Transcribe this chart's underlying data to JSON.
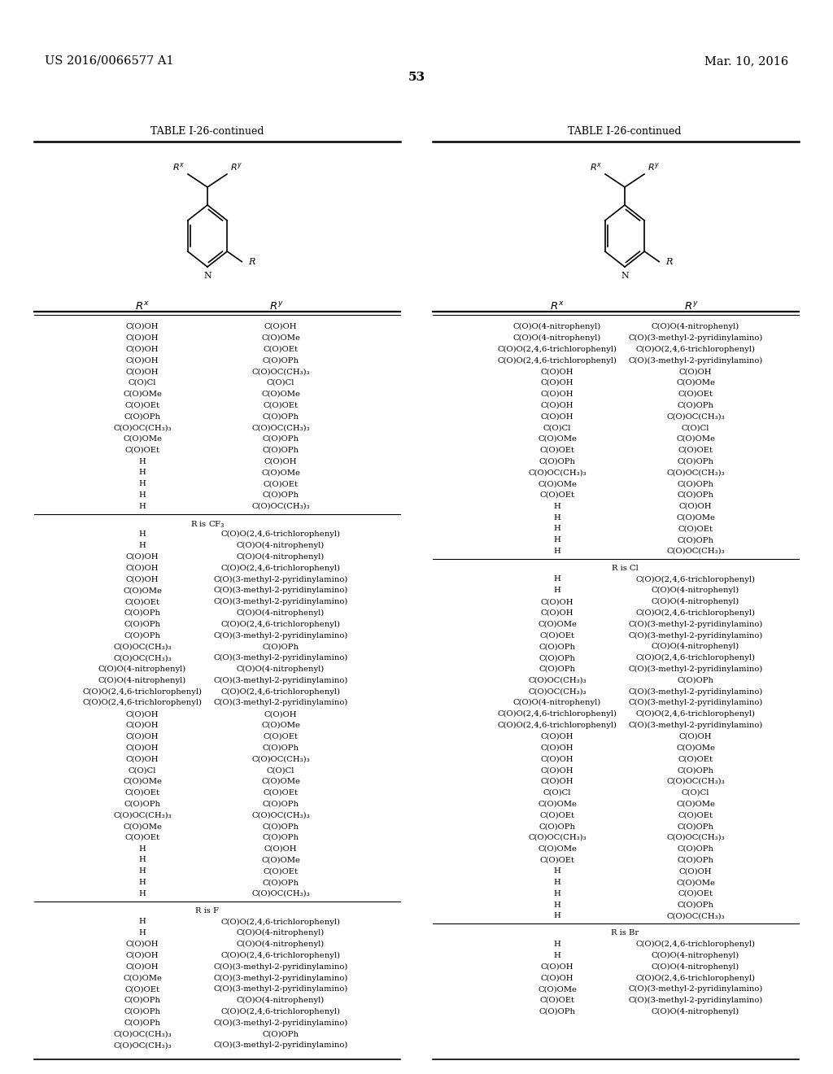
{
  "patent_left": "US 2016/0066577 A1",
  "patent_right": "Mar. 10, 2016",
  "page_number": "53",
  "table_title": "TABLE I-26-continued",
  "bg_color": "#ffffff",
  "text_color": "#000000",
  "left_initial_rows": [
    [
      "C(O)OH",
      "C(O)OH"
    ],
    [
      "C(O)OH",
      "C(O)OMe"
    ],
    [
      "C(O)OH",
      "C(O)OEt"
    ],
    [
      "C(O)OH",
      "C(O)OPh"
    ],
    [
      "C(O)OH",
      "C(O)OC(CH₃)₃"
    ],
    [
      "C(O)Cl",
      "C(O)Cl"
    ],
    [
      "C(O)OMe",
      "C(O)OMe"
    ],
    [
      "C(O)OEt",
      "C(O)OEt"
    ],
    [
      "C(O)OPh",
      "C(O)OPh"
    ],
    [
      "C(O)OC(CH₃)₃",
      "C(O)OC(CH₃)₃"
    ],
    [
      "C(O)OMe",
      "C(O)OPh"
    ],
    [
      "C(O)OEt",
      "C(O)OPh"
    ],
    [
      "H",
      "C(O)OH"
    ],
    [
      "H",
      "C(O)OMe"
    ],
    [
      "H",
      "C(O)OEt"
    ],
    [
      "H",
      "C(O)OPh"
    ],
    [
      "H",
      "C(O)OC(CH₃)₃"
    ]
  ],
  "left_cf3_rows": [
    [
      "H",
      "C(O)O(2,4,6-trichlorophenyl)"
    ],
    [
      "H",
      "C(O)O(4-nitrophenyl)"
    ],
    [
      "C(O)OH",
      "C(O)O(4-nitrophenyl)"
    ],
    [
      "C(O)OH",
      "C(O)O(2,4,6-trichlorophenyl)"
    ],
    [
      "C(O)OH",
      "C(O)(3-methyl-2-pyridinylamino)"
    ],
    [
      "C(O)OMe",
      "C(O)(3-methyl-2-pyridinylamino)"
    ],
    [
      "C(O)OEt",
      "C(O)(3-methyl-2-pyridinylamino)"
    ],
    [
      "C(O)OPh",
      "C(O)O(4-nitrophenyl)"
    ],
    [
      "C(O)OPh",
      "C(O)O(2,4,6-trichlorophenyl)"
    ],
    [
      "C(O)OPh",
      "C(O)(3-methyl-2-pyridinylamino)"
    ],
    [
      "C(O)OC(CH₃)₃",
      "C(O)OPh"
    ],
    [
      "C(O)OC(CH₃)₃",
      "C(O)(3-methyl-2-pyridinylamino)"
    ],
    [
      "C(O)O(4-nitrophenyl)",
      "C(O)O(4-nitrophenyl)"
    ],
    [
      "C(O)O(4-nitrophenyl)",
      "C(O)(3-methyl-2-pyridinylamino)"
    ],
    [
      "C(O)O(2,4,6-trichlorophenyl)",
      "C(O)O(2,4,6-trichlorophenyl)"
    ],
    [
      "C(O)O(2,4,6-trichlorophenyl)",
      "C(O)(3-methyl-2-pyridinylamino)"
    ],
    [
      "C(O)OH",
      "C(O)OH"
    ],
    [
      "C(O)OH",
      "C(O)OMe"
    ],
    [
      "C(O)OH",
      "C(O)OEt"
    ],
    [
      "C(O)OH",
      "C(O)OPh"
    ],
    [
      "C(O)OH",
      "C(O)OC(CH₃)₃"
    ],
    [
      "C(O)Cl",
      "C(O)Cl"
    ],
    [
      "C(O)OMe",
      "C(O)OMe"
    ],
    [
      "C(O)OEt",
      "C(O)OEt"
    ],
    [
      "C(O)OPh",
      "C(O)OPh"
    ],
    [
      "C(O)OC(CH₃)₃",
      "C(O)OC(CH₃)₃"
    ],
    [
      "C(O)OMe",
      "C(O)OPh"
    ],
    [
      "C(O)OEt",
      "C(O)OPh"
    ],
    [
      "H",
      "C(O)OH"
    ],
    [
      "H",
      "C(O)OMe"
    ],
    [
      "H",
      "C(O)OEt"
    ],
    [
      "H",
      "C(O)OPh"
    ],
    [
      "H",
      "C(O)OC(CH₃)₃"
    ]
  ],
  "left_f_rows": [
    [
      "H",
      "C(O)O(2,4,6-trichlorophenyl)"
    ],
    [
      "H",
      "C(O)O(4-nitrophenyl)"
    ],
    [
      "C(O)OH",
      "C(O)O(4-nitrophenyl)"
    ],
    [
      "C(O)OH",
      "C(O)O(2,4,6-trichlorophenyl)"
    ],
    [
      "C(O)OH",
      "C(O)(3-methyl-2-pyridinylamino)"
    ],
    [
      "C(O)OMe",
      "C(O)(3-methyl-2-pyridinylamino)"
    ],
    [
      "C(O)OEt",
      "C(O)(3-methyl-2-pyridinylamino)"
    ],
    [
      "C(O)OPh",
      "C(O)O(4-nitrophenyl)"
    ],
    [
      "C(O)OPh",
      "C(O)O(2,4,6-trichlorophenyl)"
    ],
    [
      "C(O)OPh",
      "C(O)(3-methyl-2-pyridinylamino)"
    ],
    [
      "C(O)OC(CH₃)₃",
      "C(O)OPh"
    ],
    [
      "C(O)OC(CH₃)₃",
      "C(O)(3-methyl-2-pyridinylamino)"
    ]
  ],
  "right_initial_rows": [
    [
      "C(O)O(4-nitrophenyl)",
      "C(O)O(4-nitrophenyl)"
    ],
    [
      "C(O)O(4-nitrophenyl)",
      "C(O)(3-methyl-2-pyridinylamino)"
    ],
    [
      "C(O)O(2,4,6-trichlorophenyl)",
      "C(O)O(2,4,6-trichlorophenyl)"
    ],
    [
      "C(O)O(2,4,6-trichlorophenyl)",
      "C(O)(3-methyl-2-pyridinylamino)"
    ],
    [
      "C(O)OH",
      "C(O)OH"
    ],
    [
      "C(O)OH",
      "C(O)OMe"
    ],
    [
      "C(O)OH",
      "C(O)OEt"
    ],
    [
      "C(O)OH",
      "C(O)OPh"
    ],
    [
      "C(O)OH",
      "C(O)OC(CH₃)₃"
    ],
    [
      "C(O)Cl",
      "C(O)Cl"
    ],
    [
      "C(O)OMe",
      "C(O)OMe"
    ],
    [
      "C(O)OEt",
      "C(O)OEt"
    ],
    [
      "C(O)OPh",
      "C(O)OPh"
    ],
    [
      "C(O)OC(CH₃)₃",
      "C(O)OC(CH₃)₃"
    ],
    [
      "C(O)OMe",
      "C(O)OPh"
    ],
    [
      "C(O)OEt",
      "C(O)OPh"
    ],
    [
      "H",
      "C(O)OH"
    ],
    [
      "H",
      "C(O)OMe"
    ],
    [
      "H",
      "C(O)OEt"
    ],
    [
      "H",
      "C(O)OPh"
    ],
    [
      "H",
      "C(O)OC(CH₃)₃"
    ]
  ],
  "right_cl_rows": [
    [
      "H",
      "C(O)O(2,4,6-trichlorophenyl)"
    ],
    [
      "H",
      "C(O)O(4-nitrophenyl)"
    ],
    [
      "C(O)OH",
      "C(O)O(4-nitrophenyl)"
    ],
    [
      "C(O)OH",
      "C(O)O(2,4,6-trichlorophenyl)"
    ],
    [
      "C(O)OMe",
      "C(O)(3-methyl-2-pyridinylamino)"
    ],
    [
      "C(O)OEt",
      "C(O)(3-methyl-2-pyridinylamino)"
    ],
    [
      "C(O)OPh",
      "C(O)O(4-nitrophenyl)"
    ],
    [
      "C(O)OPh",
      "C(O)O(2,4,6-trichlorophenyl)"
    ],
    [
      "C(O)OPh",
      "C(O)(3-methyl-2-pyridinylamino)"
    ],
    [
      "C(O)OC(CH₃)₃",
      "C(O)OPh"
    ],
    [
      "C(O)OC(CH₃)₃",
      "C(O)(3-methyl-2-pyridinylamino)"
    ],
    [
      "C(O)O(4-nitrophenyl)",
      "C(O)(3-methyl-2-pyridinylamino)"
    ],
    [
      "C(O)O(2,4,6-trichlorophenyl)",
      "C(O)O(2,4,6-trichlorophenyl)"
    ],
    [
      "C(O)O(2,4,6-trichlorophenyl)",
      "C(O)(3-methyl-2-pyridinylamino)"
    ],
    [
      "C(O)OH",
      "C(O)OH"
    ],
    [
      "C(O)OH",
      "C(O)OMe"
    ],
    [
      "C(O)OH",
      "C(O)OEt"
    ],
    [
      "C(O)OH",
      "C(O)OPh"
    ],
    [
      "C(O)OH",
      "C(O)OC(CH₃)₃"
    ],
    [
      "C(O)Cl",
      "C(O)Cl"
    ],
    [
      "C(O)OMe",
      "C(O)OMe"
    ],
    [
      "C(O)OEt",
      "C(O)OEt"
    ],
    [
      "C(O)OPh",
      "C(O)OPh"
    ],
    [
      "C(O)OC(CH₃)₃",
      "C(O)OC(CH₃)₃"
    ],
    [
      "C(O)OMe",
      "C(O)OPh"
    ],
    [
      "C(O)OEt",
      "C(O)OPh"
    ],
    [
      "H",
      "C(O)OH"
    ],
    [
      "H",
      "C(O)OMe"
    ],
    [
      "H",
      "C(O)OEt"
    ],
    [
      "H",
      "C(O)OPh"
    ],
    [
      "H",
      "C(O)OC(CH₃)₃"
    ]
  ],
  "right_br_rows": [
    [
      "H",
      "C(O)O(2,4,6-trichlorophenyl)"
    ],
    [
      "H",
      "C(O)O(4-nitrophenyl)"
    ],
    [
      "C(O)OH",
      "C(O)O(4-nitrophenyl)"
    ],
    [
      "C(O)OH",
      "C(O)O(2,4,6-trichlorophenyl)"
    ],
    [
      "C(O)OMe",
      "C(O)(3-methyl-2-pyridinylamino)"
    ],
    [
      "C(O)OEt",
      "C(O)(3-methyl-2-pyridinylamino)"
    ],
    [
      "C(O)OPh",
      "C(O)O(4-nitrophenyl)"
    ]
  ]
}
